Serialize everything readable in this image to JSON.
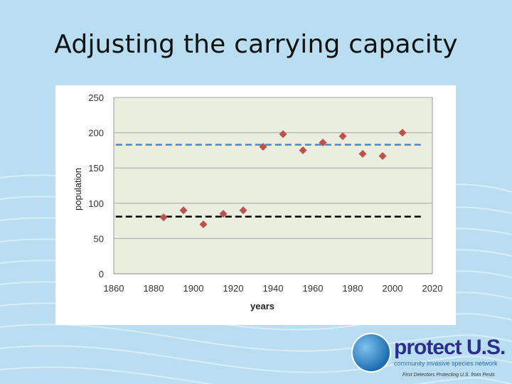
{
  "slide": {
    "title": "Adjusting the carrying capacity"
  },
  "colors": {
    "background": "#b9def2",
    "plot_area": "#eaeede",
    "marker": "#c0504d",
    "upper_capacity_line": "#4a86c8",
    "lower_capacity_line": "#000000",
    "logo_text": "#2b2e8a"
  },
  "chart_data": {
    "type": "scatter",
    "title": "",
    "xlabel": "years",
    "ylabel": "population",
    "xlim": [
      1860,
      2020
    ],
    "ylim": [
      0,
      250
    ],
    "xticks": [
      1860,
      1880,
      1900,
      1920,
      1940,
      1960,
      1980,
      2000,
      2020
    ],
    "yticks": [
      0,
      50,
      100,
      150,
      200,
      250
    ],
    "grid": "horizontal",
    "legend": "none",
    "series": [
      {
        "name": "population",
        "marker": "diamond",
        "points": [
          {
            "x": 1885,
            "y": 80
          },
          {
            "x": 1895,
            "y": 90
          },
          {
            "x": 1905,
            "y": 70
          },
          {
            "x": 1915,
            "y": 85
          },
          {
            "x": 1925,
            "y": 90
          },
          {
            "x": 1935,
            "y": 180
          },
          {
            "x": 1945,
            "y": 198
          },
          {
            "x": 1955,
            "y": 175
          },
          {
            "x": 1965,
            "y": 186
          },
          {
            "x": 1975,
            "y": 195
          },
          {
            "x": 1985,
            "y": 170
          },
          {
            "x": 1995,
            "y": 167
          },
          {
            "x": 2005,
            "y": 200
          }
        ]
      }
    ],
    "reference_lines": [
      {
        "name": "carrying-capacity-upper",
        "y": 183,
        "x_start": 1861,
        "x_end": 2015,
        "style": "dashed",
        "color": "#4a86c8"
      },
      {
        "name": "carrying-capacity-lower",
        "y": 81,
        "x_start": 1861,
        "x_end": 2015,
        "style": "dashed",
        "color": "#000000"
      }
    ]
  },
  "logo": {
    "brand": "protect U.S.",
    "tagline": "community invasive species network",
    "slogan": "First Detectors Protecting U.S. from Pests"
  }
}
